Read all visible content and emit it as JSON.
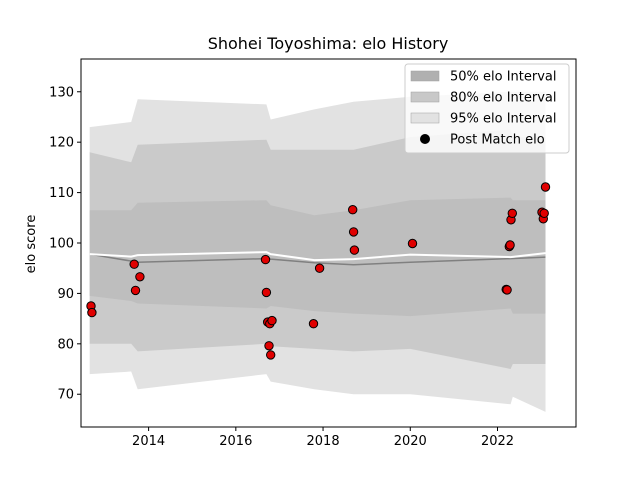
{
  "chart_data": {
    "type": "scatter",
    "title": "Shohei Toyoshima: elo History",
    "xlabel": "",
    "ylabel": "elo score",
    "xlim": [
      2012.45,
      2023.8
    ],
    "ylim": [
      63.5,
      136.5
    ],
    "x_ticks": [
      2014,
      2016,
      2018,
      2020,
      2022
    ],
    "y_ticks": [
      70,
      80,
      90,
      100,
      110,
      120,
      130
    ],
    "grid": false,
    "legend_position": "top-right",
    "legend": [
      {
        "label": "50% elo Interval",
        "kind": "band",
        "color": "#b0b0b0"
      },
      {
        "label": "80% elo Interval",
        "kind": "band",
        "color": "#c8c8c8"
      },
      {
        "label": "95% elo Interval",
        "kind": "band",
        "color": "#e2e2e2"
      },
      {
        "label": "Post Match elo",
        "kind": "marker",
        "color": "#000000"
      }
    ],
    "band_x": [
      2012.65,
      2013.6,
      2013.75,
      2016.7,
      2016.8,
      2017.8,
      2018.7,
      2020.0,
      2022.3,
      2022.35,
      2023.1
    ],
    "bands": [
      {
        "name": "95% elo Interval",
        "color": "#e2e2e2",
        "upper": [
          123,
          124,
          128.5,
          127.5,
          124.5,
          126.5,
          128,
          129,
          130,
          130,
          130
        ],
        "lower": [
          74,
          74.5,
          71,
          74,
          72.5,
          71,
          70,
          70,
          68,
          69.5,
          66.5
        ]
      },
      {
        "name": "80% elo Interval",
        "color": "#cacaca",
        "upper": [
          118,
          116,
          119.5,
          120.5,
          118.5,
          118.5,
          118.5,
          121,
          122.5,
          121,
          121
        ]
      },
      {
        "name": "50% elo Interval",
        "color": "#bebebe",
        "upper": [
          106.5,
          106.5,
          108,
          108.5,
          107.5,
          105.5,
          106.5,
          108.5,
          109,
          108.5,
          108.5
        ],
        "lower": [
          89.5,
          88.5,
          88,
          87,
          87.5,
          86.5,
          86,
          85.5,
          87,
          86,
          86
        ]
      }
    ],
    "mean_line": {
      "color": "#ffffff",
      "x": [
        2012.65,
        2013.6,
        2013.75,
        2016.7,
        2016.8,
        2017.8,
        2018.7,
        2020.0,
        2022.3,
        2023.1
      ],
      "y": [
        97.8,
        97.3,
        97.6,
        98.2,
        97.8,
        96.6,
        96.8,
        97.7,
        97.2,
        98.0
      ]
    },
    "median_line": {
      "color": "#808080",
      "x": [
        2012.65,
        2013.75,
        2016.7,
        2016.8,
        2017.8,
        2018.7,
        2020.0,
        2022.3,
        2023.1
      ],
      "y": [
        97.8,
        96.2,
        96.9,
        96.8,
        96.1,
        95.7,
        96.2,
        96.9,
        97.2
      ]
    },
    "series": [
      {
        "name": "Post Match elo",
        "marker_color": "#e00000",
        "x": [
          2012.68,
          2012.7,
          2013.67,
          2013.7,
          2013.8,
          2016.68,
          2016.7,
          2016.73,
          2016.76,
          2016.78,
          2016.8,
          2016.83,
          2017.78,
          2017.92,
          2018.68,
          2018.7,
          2018.72,
          2020.05,
          2022.2,
          2022.22,
          2022.27,
          2022.29,
          2022.31,
          2022.34,
          2023.02,
          2023.05,
          2023.07,
          2023.1
        ],
        "y": [
          87.5,
          86.2,
          95.8,
          90.6,
          93.3,
          96.7,
          90.2,
          84.3,
          79.6,
          84.0,
          77.8,
          84.6,
          84.0,
          95.0,
          106.6,
          102.2,
          98.6,
          99.9,
          90.8,
          90.7,
          99.3,
          99.6,
          104.6,
          105.9,
          106.1,
          104.8,
          105.9,
          111.1
        ]
      }
    ]
  }
}
